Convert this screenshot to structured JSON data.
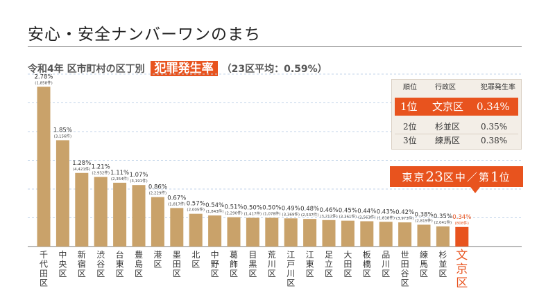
{
  "title": "安心・安全ナンバーワンのまち",
  "subtitle": {
    "lead": "令和4年 区市町村の区丁別",
    "highlight": "犯罪発生率",
    "average": "（23区平均：0.59%）"
  },
  "ranking": {
    "headers": [
      "順位",
      "行政区",
      "犯罪発生率"
    ],
    "rows": [
      {
        "rank": "1位",
        "ward": "文京区",
        "rate": "0.34%"
      },
      {
        "rank": "2位",
        "ward": "杉並区",
        "rate": "0.35%"
      },
      {
        "rank": "3位",
        "ward": "練馬区",
        "rate": "0.38%"
      }
    ]
  },
  "callout": {
    "p1": "東京",
    "p2": "23",
    "p3": "区中／第",
    "p4": "1",
    "p5": "位"
  },
  "colors": {
    "bar": "#c9a26a",
    "highlight": "#e8531e",
    "grid": "#c0d3e8"
  },
  "chart_data": {
    "type": "bar",
    "categories": [
      "千代田区",
      "中央区",
      "新宿区",
      "渋谷区",
      "台東区",
      "豊島区",
      "港区",
      "墨田区",
      "北区",
      "中野区",
      "葛飾区",
      "目黒区",
      "荒川区",
      "江戸川区",
      "江東区",
      "足立区",
      "大田区",
      "板橋区",
      "品川区",
      "世田谷区",
      "練馬区",
      "杉並区",
      "文京区"
    ],
    "values": [
      2.78,
      1.85,
      1.28,
      1.21,
      1.11,
      1.07,
      0.86,
      0.67,
      0.57,
      0.54,
      0.51,
      0.5,
      0.5,
      0.49,
      0.48,
      0.46,
      0.45,
      0.44,
      0.43,
      0.42,
      0.38,
      0.35,
      0.34
    ],
    "value_labels": [
      "2.78%",
      "1.85%",
      "1.28%",
      "1.21%",
      "1.11%",
      "1.07%",
      "0.86%",
      "0.67%",
      "0.57%",
      "0.54%",
      "0.51%",
      "0.50%",
      "0.50%",
      "0.49%",
      "0.48%",
      "0.46%",
      "0.45%",
      "0.44%",
      "0.43%",
      "0.42%",
      "0.38%",
      "0.35%",
      "0.34%"
    ],
    "counts": [
      "(1,858件)",
      "(3,156件)",
      "(4,421件)",
      "(2,932件)",
      "(2,354件)",
      "(3,191件)",
      "(2,229件)",
      "(1,817件)",
      "(2,005件)",
      "(1,843件)",
      "(2,290件)",
      "(1,417件)",
      "(1,078件)",
      "(3,369件)",
      "(2,537件)",
      "(3,212件)",
      "(3,361件)",
      "(2,563件)",
      "(1,818件)",
      "(3,973件)",
      "(2,819件)",
      "(2,041件)",
      "(808件)"
    ],
    "highlight_index": 22,
    "ylim": [
      0,
      3.0
    ],
    "grid": true,
    "title": "",
    "xlabel": "",
    "ylabel": ""
  }
}
